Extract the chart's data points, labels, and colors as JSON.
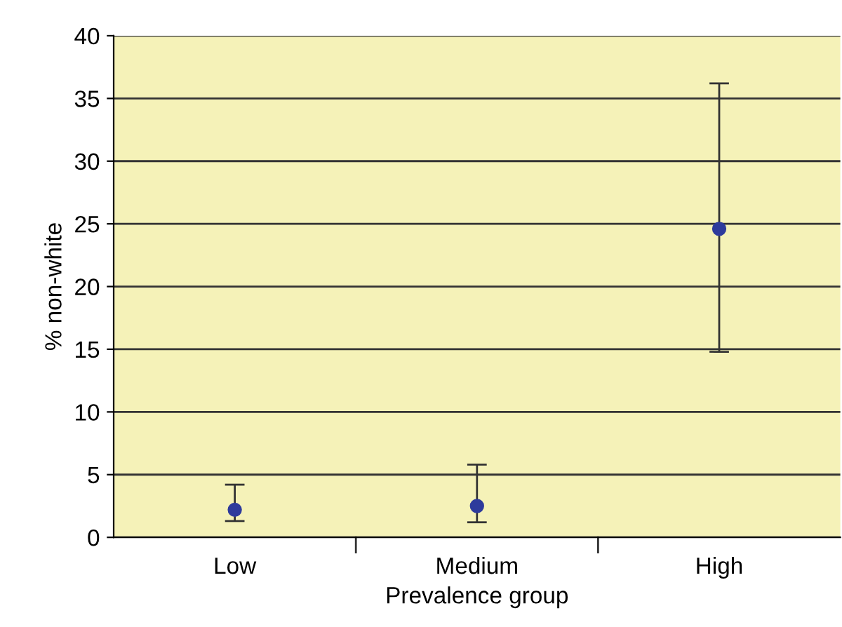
{
  "chart_data": {
    "type": "scatter",
    "xlabel": "Prevalence group",
    "ylabel": "% non-white",
    "categories": [
      "Low",
      "Medium",
      "High"
    ],
    "values": [
      2.2,
      2.5,
      24.6
    ],
    "errors": [
      [
        1.3,
        4.2
      ],
      [
        1.2,
        5.8
      ],
      [
        14.8,
        36.2
      ]
    ],
    "color": "#2e3b9c",
    "marker": "circle",
    "ylim": [
      0,
      40
    ],
    "yticks": [
      0,
      5,
      10,
      15,
      20,
      25,
      30,
      35,
      40
    ],
    "grid": "y"
  }
}
